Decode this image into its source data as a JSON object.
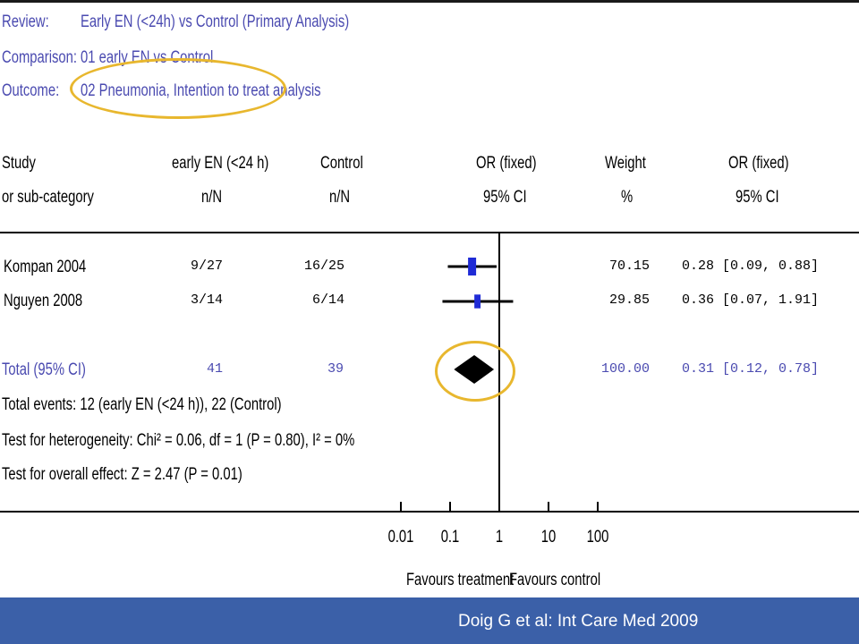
{
  "header": {
    "review_label": "Review:",
    "review_value": "Early EN (<24h) vs Control (Primary Analysis)",
    "comparison_label": "Comparison:",
    "comparison_value": "01 early EN vs Control",
    "outcome_label": "Outcome:",
    "outcome_value": "02 Pneumonia, Intention to treat analysis"
  },
  "columns": {
    "study_1": "Study",
    "study_2": "or sub-category",
    "early_1": "early EN (<24 h)",
    "early_2": "n/N",
    "control_1": "Control",
    "control_2": "n/N",
    "or_1": "OR (fixed)",
    "or_2": "95% CI",
    "weight_1": "Weight",
    "weight_2": "%",
    "orci_1": "OR (fixed)",
    "orci_2": "95% CI"
  },
  "rows": [
    {
      "study": "Kompan 2004",
      "early": "9/27",
      "control": "16/25",
      "weight": "70.15",
      "ci_text": "0.28 [0.09, 0.88]"
    },
    {
      "study": "Nguyen 2008",
      "early": "3/14",
      "control": "6/14",
      "weight": "29.85",
      "ci_text": "0.36 [0.07, 1.91]"
    }
  ],
  "total": {
    "label": "Total (95% CI)",
    "early": "41",
    "control": "39",
    "weight": "100.00",
    "ci_text": "0.31 [0.12, 0.78]"
  },
  "footnotes": {
    "events": "Total events: 12 (early EN (<24 h)), 22 (Control)",
    "heterogeneity": "Test for heterogeneity: Chi² = 0.06, df = 1 (P = 0.80), I² = 0%",
    "overall": "Test for overall effect: Z = 2.47 (P = 0.01)"
  },
  "axis": {
    "favours_left": "Favours treatment",
    "favours_right": "Favours control"
  },
  "caption": "Doig G et al: Int Care Med 2009",
  "colors": {
    "header_text": "#4a4ab0",
    "square": "#1f2bd6",
    "highlight": "#e8b72e",
    "caption_bar": "#3b60a8"
  },
  "chart_data": {
    "type": "forest",
    "scale": "log",
    "xlim": [
      0.01,
      100
    ],
    "ticks": [
      0.01,
      0.1,
      1,
      10,
      100
    ],
    "tick_labels": [
      "0.01",
      "0.1",
      "1",
      "10",
      "100"
    ],
    "studies": [
      {
        "name": "Kompan 2004",
        "or": 0.28,
        "lo": 0.09,
        "hi": 0.88,
        "weight": 70.15
      },
      {
        "name": "Nguyen 2008",
        "or": 0.36,
        "lo": 0.07,
        "hi": 1.91,
        "weight": 29.85
      }
    ],
    "pooled": {
      "name": "Total (95% CI)",
      "or": 0.31,
      "lo": 0.12,
      "hi": 0.78
    }
  }
}
